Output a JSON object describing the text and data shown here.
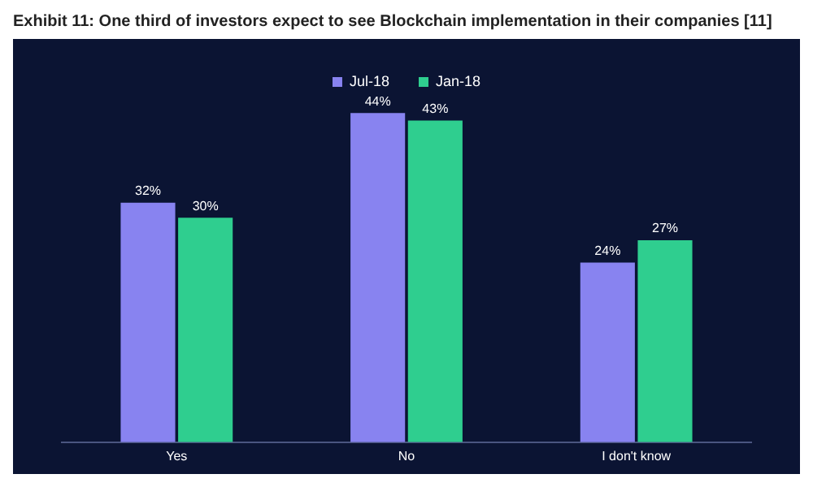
{
  "chart_data": {
    "type": "bar",
    "title": "Exhibit 11: One third of investors expect to see Blockchain implementation in their companies [11]",
    "categories": [
      "Yes",
      "No",
      "I don't know"
    ],
    "series": [
      {
        "name": "Jul-18",
        "color": "#8883f0",
        "values": [
          32,
          44,
          24
        ],
        "value_labels": [
          "32%",
          "44%",
          "24%"
        ]
      },
      {
        "name": "Jan-18",
        "color": "#2fce8f",
        "values": [
          30,
          43,
          27
        ],
        "value_labels": [
          "30%",
          "43%",
          "27%"
        ]
      }
    ],
    "legend": "top",
    "grid": false
  }
}
